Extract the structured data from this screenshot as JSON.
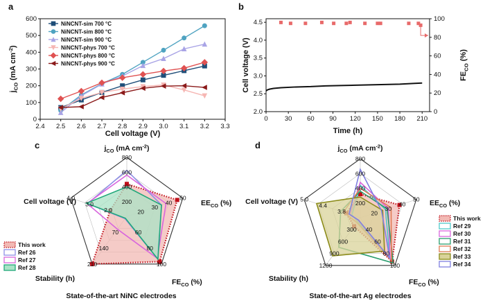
{
  "panel_labels": {
    "a": "a",
    "b": "b",
    "c": "c",
    "d": "d"
  },
  "chart_data": [
    {
      "panel": "a",
      "type": "line",
      "xlabel": "Cell voltage (V)",
      "ylabel": "jCO (mA cm-2)",
      "xlim": [
        2.4,
        3.3
      ],
      "ylim": [
        0,
        600
      ],
      "x_ticks": [
        "2.4",
        "2.5",
        "2.6",
        "2.7",
        "2.8",
        "2.9",
        "3.0",
        "3.1",
        "3.2",
        "3.3"
      ],
      "y_ticks": [
        "0",
        "100",
        "200",
        "300",
        "400",
        "500",
        "600"
      ],
      "x": [
        2.5,
        2.6,
        2.7,
        2.8,
        2.9,
        3.0,
        3.1,
        3.2
      ],
      "series": [
        {
          "name": "NiNCNT-sim 700 °C",
          "color": "#1f4e79",
          "marker": "square",
          "values": [
            70,
            115,
            160,
            200,
            235,
            262,
            290,
            318
          ]
        },
        {
          "name": "NiNCNT-sim 800 °C",
          "color": "#4fa3c1",
          "marker": "circle",
          "values": [
            52,
            145,
            212,
            268,
            340,
            412,
            485,
            558
          ]
        },
        {
          "name": "NiNCNT-sim 900 °C",
          "color": "#a9a4e6",
          "marker": "triangle",
          "values": [
            40,
            140,
            210,
            258,
            320,
            362,
            420,
            448
          ]
        },
        {
          "name": "NiNCNT-phys 700 °C",
          "color": "#f6b6b3",
          "marker": "triangle-down",
          "values": [
            62,
            125,
            160,
            180,
            195,
            205,
            175,
            140
          ]
        },
        {
          "name": "NiNCNT-phys 800 °C",
          "color": "#e05252",
          "marker": "diamond",
          "values": [
            122,
            168,
            218,
            248,
            268,
            288,
            305,
            340
          ]
        },
        {
          "name": "NiNCNT-phys 900 °C",
          "color": "#8b1a1a",
          "marker": "triangle-left",
          "values": [
            70,
            75,
            130,
            158,
            185,
            198,
            200,
            190
          ]
        }
      ]
    },
    {
      "panel": "b",
      "type": "scatter",
      "xlabel": "Time (h)",
      "ylabel": "Cell voltage (V)",
      "ylabel_right": "FECO (%)",
      "xlim": [
        0,
        220
      ],
      "ylim": [
        2.0,
        4.6
      ],
      "ylim_right": [
        0,
        100
      ],
      "x_ticks": [
        "0",
        "30",
        "60",
        "90",
        "120",
        "150",
        "180",
        "210"
      ],
      "y_ticks": [
        "2.0",
        "2.5",
        "3.0",
        "3.5",
        "4.0",
        "4.5"
      ],
      "y_right_ticks": [
        "0",
        "20",
        "40",
        "60",
        "80",
        "100"
      ],
      "voltage_series": {
        "name": "Cell voltage",
        "color": "#111111",
        "x": [
          0,
          2,
          5,
          10,
          20,
          40,
          60,
          80,
          100,
          120,
          140,
          160,
          180,
          200,
          210
        ],
        "values": [
          2.58,
          2.61,
          2.63,
          2.65,
          2.67,
          2.69,
          2.7,
          2.72,
          2.73,
          2.74,
          2.75,
          2.76,
          2.77,
          2.79,
          2.8
        ]
      },
      "fe_series": {
        "name": "FECO",
        "color": "#e86a6a",
        "x": [
          20,
          33,
          53,
          75,
          91,
          108,
          113,
          133,
          150,
          154,
          192,
          205,
          208
        ],
        "values": [
          96,
          95,
          95,
          96,
          95,
          95,
          96,
          95,
          95,
          95,
          95,
          95,
          93
        ]
      }
    },
    {
      "panel": "c",
      "type": "radar",
      "caption": "State-of-the-art NiNC electrodes",
      "axes": [
        {
          "label": "jCO (mA cm-2)",
          "ticks": [
            "200",
            "400",
            "600",
            "800"
          ]
        },
        {
          "label": "EECO (%)",
          "ticks": [
            "20",
            "30",
            "40",
            "50"
          ]
        },
        {
          "label": "FECO (%)",
          "ticks": [
            "60",
            "80",
            "100"
          ]
        },
        {
          "label": "Stability (h)",
          "ticks": [
            "70",
            "140",
            "210"
          ]
        },
        {
          "label": "Cell voltage (V)",
          "ticks": [
            "2.0",
            "3.0",
            "4.0"
          ]
        }
      ],
      "series": [
        {
          "name": "This work",
          "color": "#c0101a",
          "fill": "#f2b9b4",
          "dotted": true,
          "values": [
            0.55,
            0.9,
            0.95,
            1.0,
            0.3
          ]
        },
        {
          "name": "Ref 26",
          "color": "#8e8ee6",
          "fill": "none",
          "values": [
            0.78,
            0.62,
            0.88,
            0.05,
            0.7
          ]
        },
        {
          "name": "Ref 27",
          "color": "#d866dd",
          "fill": "none",
          "values": [
            0.7,
            0.7,
            0.88,
            0.27,
            0.71
          ]
        },
        {
          "name": "Ref 28",
          "color": "#20a87a",
          "fill": "#a9e3c6",
          "values": [
            0.5,
            0.62,
            0.9,
            0.04,
            0.72
          ]
        }
      ]
    },
    {
      "panel": "d",
      "type": "radar",
      "caption": "State-of-the-art Ag electrodes",
      "axes": [
        {
          "label": "jCO (mA cm-2)",
          "ticks": [
            "200",
            "400",
            "600",
            "800"
          ]
        },
        {
          "label": "EECO (%)",
          "ticks": [
            "20",
            "30",
            "40",
            "50"
          ]
        },
        {
          "label": "FECO (%)",
          "ticks": [
            "40",
            "60",
            "80",
            "100"
          ]
        },
        {
          "label": "Stability (h)",
          "ticks": [
            "300",
            "600",
            "900",
            "1200"
          ]
        },
        {
          "label": "Cell voltage (V)",
          "ticks": [
            "3.8",
            "4.4",
            "5.0"
          ]
        }
      ],
      "series": [
        {
          "name": "This work",
          "color": "#c0101a",
          "fill": "#f2b9b4",
          "dotted": true,
          "values": [
            0.4,
            0.7,
            0.92,
            0.18,
            0.25
          ]
        },
        {
          "name": "Ref 29",
          "color": "#4ec9c9",
          "fill": "none",
          "values": [
            0.55,
            0.45,
            0.85,
            0.08,
            0.15
          ]
        },
        {
          "name": "Ref 30",
          "color": "#d866dd",
          "fill": "none",
          "values": [
            0.6,
            0.5,
            0.86,
            0.06,
            0.18
          ]
        },
        {
          "name": "Ref 31",
          "color": "#2a9d6e",
          "fill": "none",
          "values": [
            0.45,
            0.48,
            0.95,
            0.62,
            0.35
          ]
        },
        {
          "name": "Ref 32",
          "color": "#e07b54",
          "fill": "none",
          "values": [
            0.5,
            0.55,
            0.9,
            0.1,
            0.3
          ]
        },
        {
          "name": "Ref 33",
          "color": "#8b8b1a",
          "fill": "#d9d39a",
          "values": [
            0.35,
            0.4,
            0.7,
            0.8,
            0.78
          ]
        },
        {
          "name": "Ref 34",
          "color": "#7f7fe0",
          "fill": "none",
          "values": [
            0.82,
            0.38,
            0.85,
            0.05,
            0.2
          ]
        }
      ]
    }
  ]
}
